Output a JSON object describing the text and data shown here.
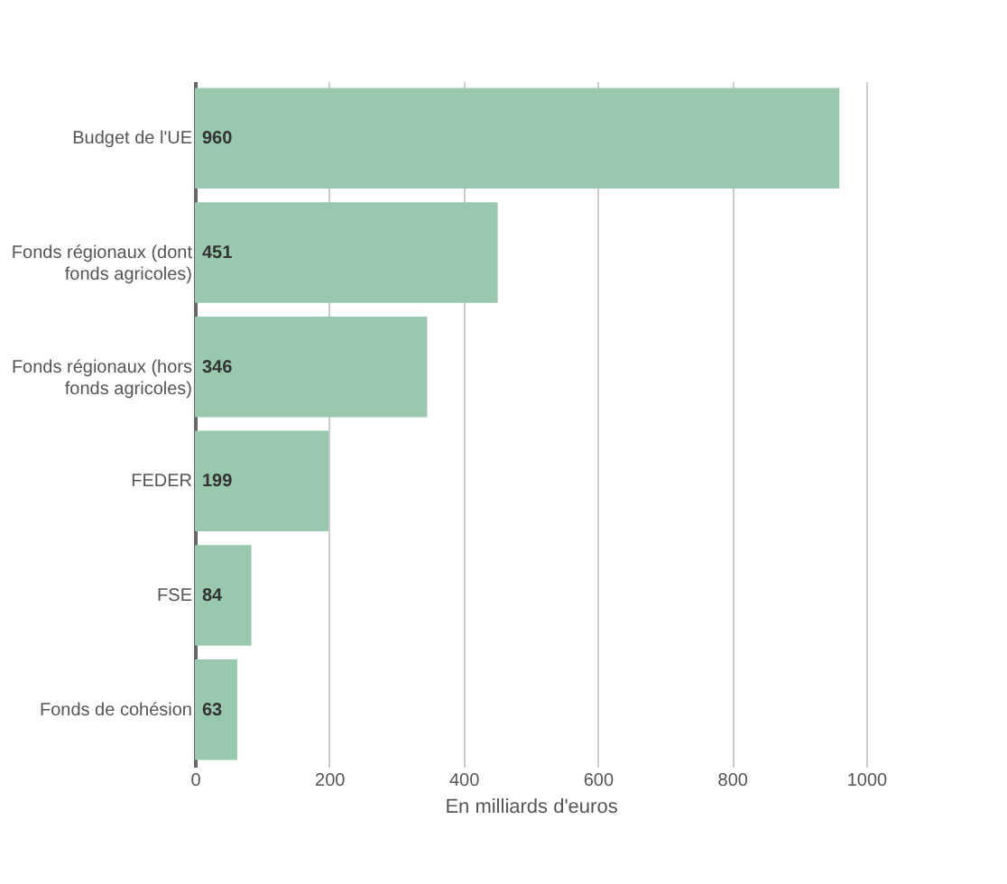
{
  "chart_data": {
    "type": "bar",
    "orientation": "horizontal",
    "xlabel": "En milliards d'euros",
    "categories": [
      "Budget de l'UE",
      "Fonds régionaux (dont fonds agricoles)",
      "Fonds régionaux (hors fonds agricoles)",
      "FEDER",
      "FSE",
      "Fonds de cohésion"
    ],
    "values": [
      960,
      451,
      346,
      199,
      84,
      63
    ],
    "color": "#98c9ae",
    "xlim": [
      0,
      1000
    ],
    "xticks": [
      0,
      200,
      400,
      600,
      800,
      1000
    ],
    "grid": "x",
    "data_labels": true
  }
}
